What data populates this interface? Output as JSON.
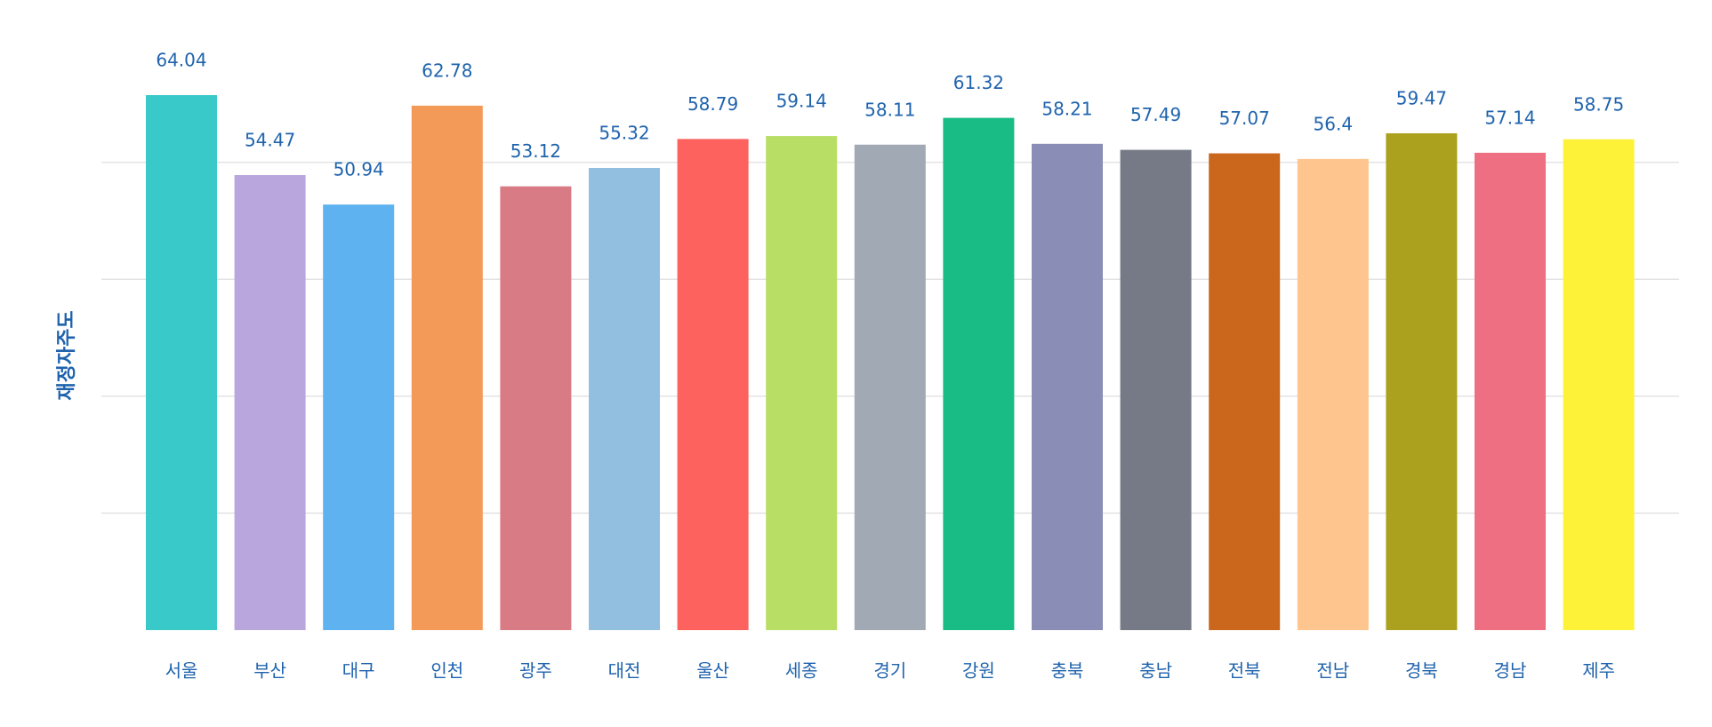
{
  "chart_data": {
    "type": "bar",
    "y_label": "재정자주도",
    "categories": [
      "서울",
      "부산",
      "대구",
      "인천",
      "광주",
      "대전",
      "울산",
      "세종",
      "경기",
      "강원",
      "충북",
      "충남",
      "전북",
      "전남",
      "경북",
      "경남",
      "제주"
    ],
    "values": [
      64.04,
      54.47,
      50.94,
      62.78,
      53.12,
      55.32,
      58.79,
      59.14,
      58.11,
      61.32,
      58.21,
      57.49,
      57.07,
      56.4,
      59.47,
      57.14,
      58.75
    ],
    "colors": [
      "#3ac9c9",
      "#b9a6dc",
      "#5eb2f0",
      "#f49a58",
      "#d97b84",
      "#92bfe0",
      "#fd625e",
      "#b9de66",
      "#a1a9b4",
      "#1abc86",
      "#8a8db5",
      "#767a86",
      "#cb671c",
      "#fec58e",
      "#aba11f",
      "#ee6e82",
      "#fdf237"
    ],
    "ylim": [
      0,
      70
    ],
    "yticks": [
      14,
      28,
      42,
      56
    ],
    "grid": true
  }
}
